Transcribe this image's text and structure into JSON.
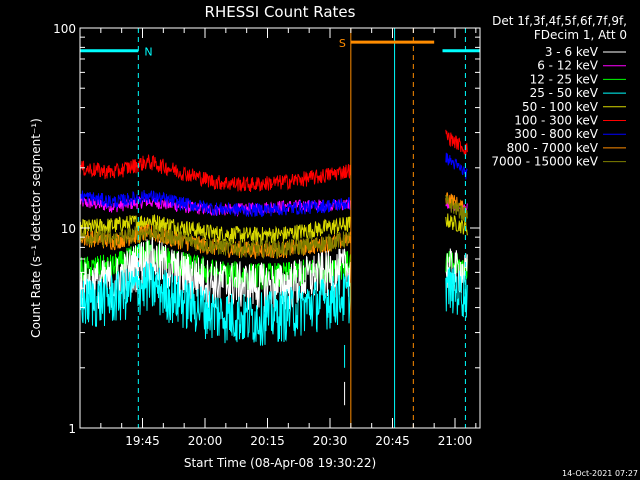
{
  "chart_data": {
    "type": "line",
    "title": "RHESSI Count Rates",
    "xlabel": "Start Time (08-Apr-08 19:30:22)",
    "ylabel": "Count Rate (s⁻¹ detector segment⁻¹)",
    "yscale": "log",
    "ylim": [
      1,
      100
    ],
    "y_ticks": [
      "1",
      "10",
      "100"
    ],
    "x_unit": "minutes",
    "xlim": [
      0,
      96
    ],
    "x_ticks": [
      {
        "label": "19:45",
        "value": 15
      },
      {
        "label": "20:00",
        "value": 30
      },
      {
        "label": "20:15",
        "value": 45
      },
      {
        "label": "20:30",
        "value": 60
      },
      {
        "label": "20:45",
        "value": 75
      },
      {
        "label": "21:00",
        "value": 90
      }
    ],
    "legend": {
      "header": [
        "Det 1f,3f,4f,5f,6f,7f,9f,",
        "FDecim 1, Att 0"
      ],
      "position": "right"
    },
    "gap": [
      65,
      87
    ],
    "series": [
      {
        "name": "3 - 6 keV",
        "color": "#ffffff",
        "pre": [
          5.3,
          5.5,
          7.2,
          6.0,
          5.4,
          5.3,
          5.2,
          5.9,
          6.3
        ],
        "post": [
          6.4,
          6.0
        ]
      },
      {
        "name": "6 - 12 keV",
        "color": "#ff00ff",
        "pre": [
          13.5,
          12.8,
          13.6,
          12.8,
          12.3,
          12.5,
          12.9,
          13.0,
          13.2
        ],
        "post": [
          13.0,
          12.5
        ]
      },
      {
        "name": "12 - 25 keV",
        "color": "#00ff00",
        "pre": [
          6.2,
          6.4,
          7.6,
          6.6,
          6.0,
          5.8,
          5.8,
          6.2,
          6.7
        ],
        "post": [
          6.8,
          6.3
        ]
      },
      {
        "name": "25 - 50 keV",
        "color": "#00ffff",
        "pre": [
          4.3,
          4.6,
          5.3,
          4.4,
          3.8,
          3.6,
          3.8,
          4.3,
          4.7
        ],
        "post": [
          5.2,
          4.7
        ]
      },
      {
        "name": "50 - 100 keV",
        "color": "#d8d800",
        "pre": [
          10.0,
          10.3,
          10.9,
          10.1,
          9.4,
          9.2,
          9.3,
          9.9,
          10.5
        ],
        "post": [
          11.0,
          10.0
        ]
      },
      {
        "name": "100 - 300 keV",
        "color": "#ff0000",
        "pre": [
          20.0,
          19.0,
          21.5,
          19.0,
          17.0,
          16.5,
          17.0,
          18.0,
          19.5
        ],
        "post": [
          29.0,
          24.5
        ]
      },
      {
        "name": "300 - 800 keV",
        "color": "#0000ff",
        "pre": [
          14.5,
          13.5,
          14.5,
          13.3,
          12.5,
          12.3,
          12.5,
          12.8,
          13.3
        ],
        "post": [
          22.5,
          18.5
        ]
      },
      {
        "name": "800 - 7000 keV",
        "color": "#ff8c00",
        "pre": [
          9.0,
          8.6,
          9.5,
          8.6,
          8.0,
          7.8,
          7.8,
          8.2,
          8.8
        ],
        "post": [
          14.5,
          12.0
        ]
      },
      {
        "name": "7000 - 15000 keV",
        "color": "#808000",
        "pre": [
          9.2,
          8.8,
          9.6,
          8.8,
          8.1,
          7.9,
          7.9,
          8.3,
          8.9
        ],
        "post": [
          13.5,
          11.5
        ]
      }
    ],
    "bars": [
      {
        "label": "N",
        "color": "#00ffff",
        "segments": [
          [
            0,
            14
          ],
          [
            87,
            96
          ]
        ],
        "level": 77,
        "marker_x": 14
      },
      {
        "label": "S",
        "color": "#ff8c00",
        "segments": [
          [
            65,
            85
          ]
        ],
        "level": 85,
        "marker_x": 65
      }
    ],
    "vlines": [
      {
        "x": 14,
        "color": "#00ffff",
        "style": "dashed"
      },
      {
        "x": 65,
        "color": "#ff8c00",
        "style": "solid"
      },
      {
        "x": 75.5,
        "color": "#00ffff",
        "style": "solid"
      },
      {
        "x": 80,
        "color": "#ff8c00",
        "style": "dashed"
      },
      {
        "x": 92.5,
        "color": "#00ffff",
        "style": "dashed"
      }
    ],
    "timestamp": "14-Oct-2021 07:27"
  }
}
